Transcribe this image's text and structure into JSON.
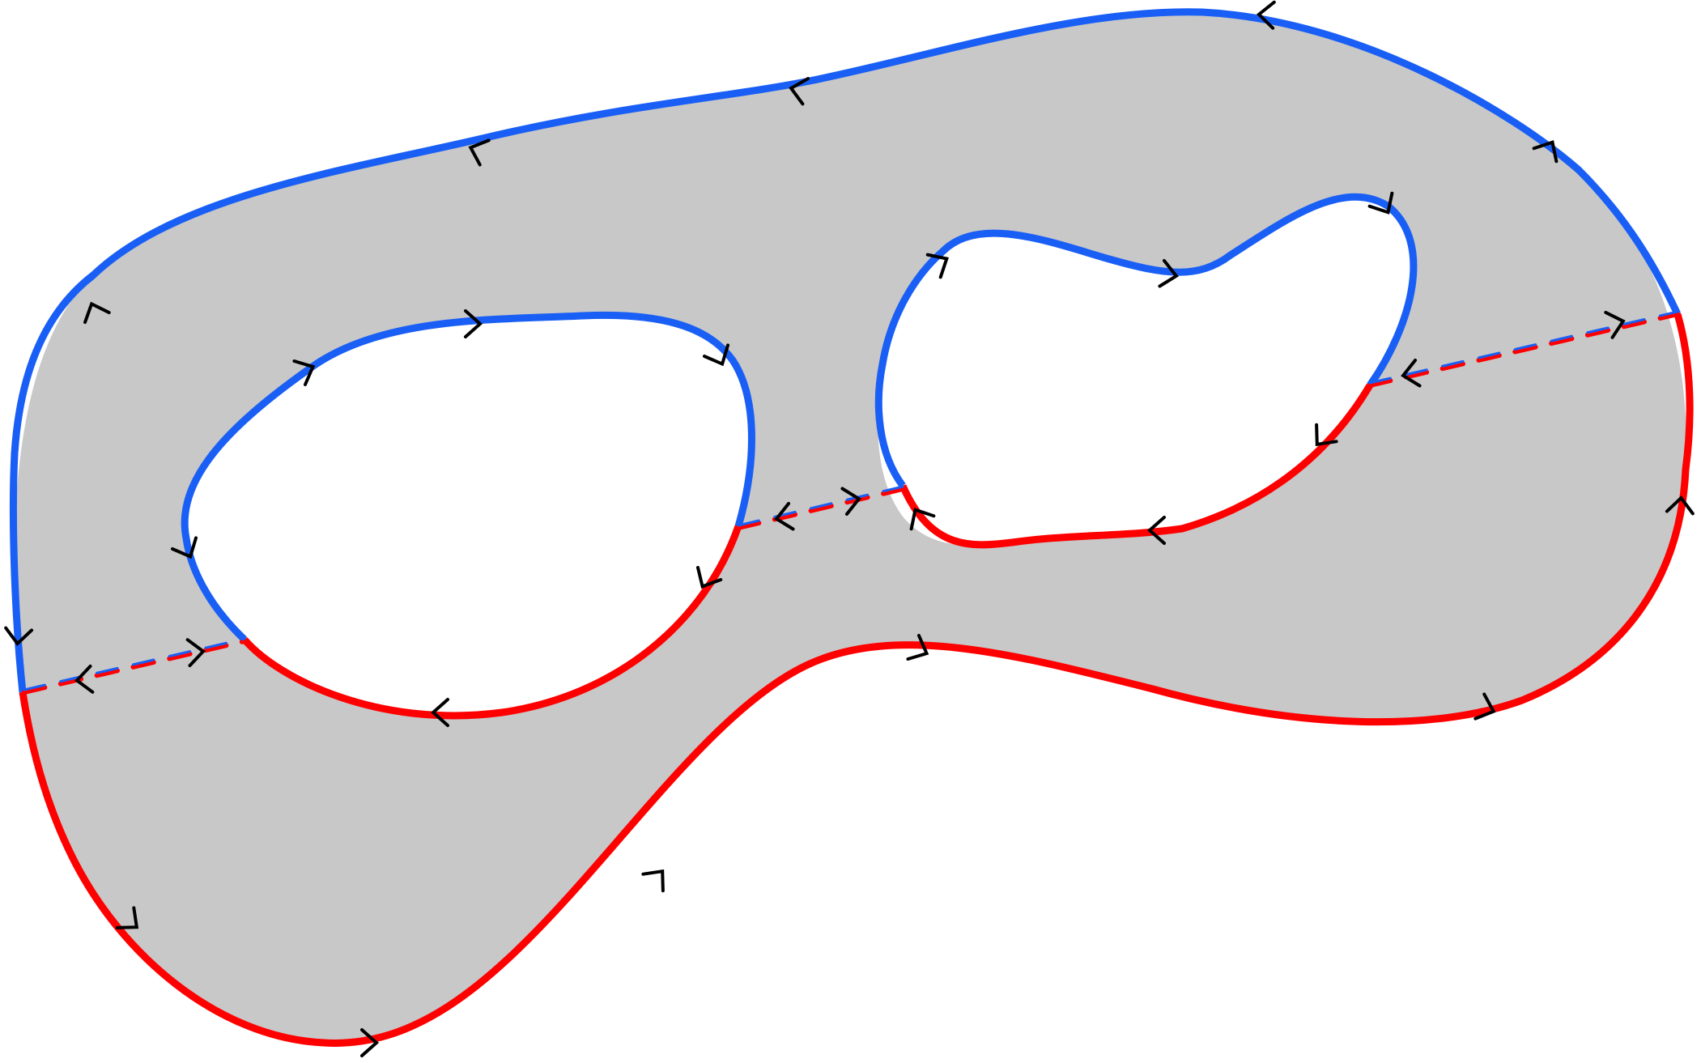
{
  "colors": {
    "surface": "#c8c8c8",
    "boundary_a": "#1a5ff5",
    "boundary_b": "#ff0000",
    "arrow": "#000000",
    "background": "#ffffff"
  },
  "components": [
    "outer-boundary",
    "left-hole-boundary",
    "right-hole-boundary",
    "cut-left",
    "cut-middle",
    "cut-right"
  ]
}
